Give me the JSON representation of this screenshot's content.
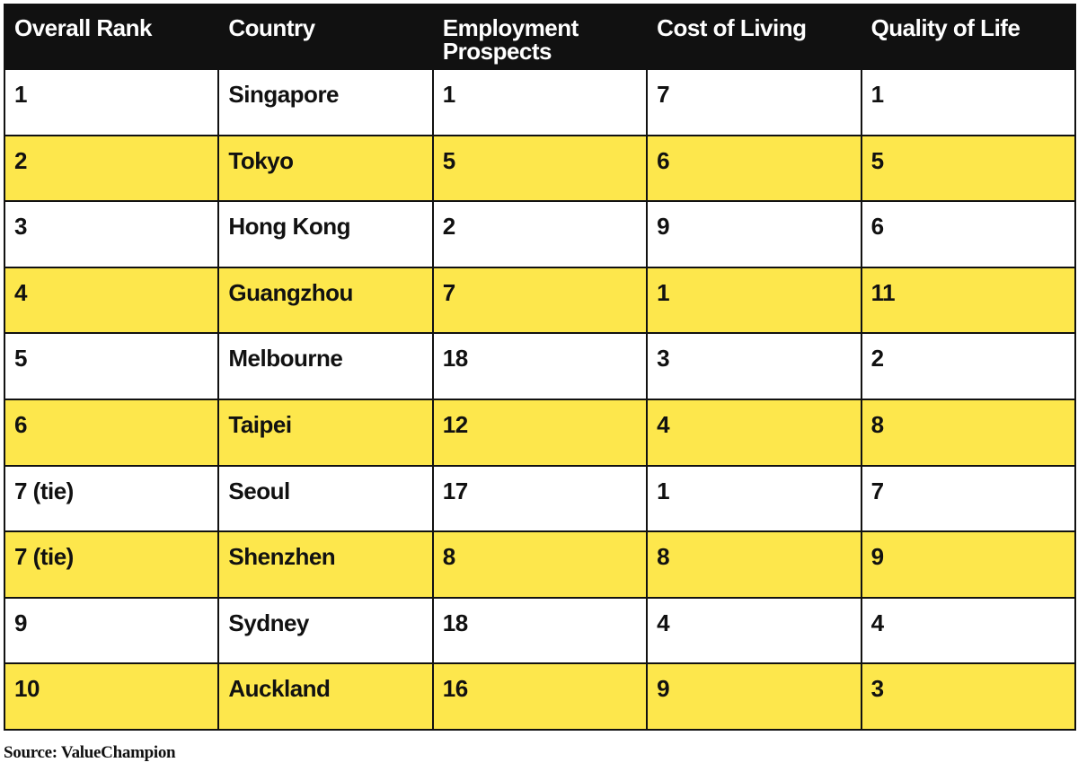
{
  "chart_data": {
    "type": "table",
    "columns": [
      "Overall Rank",
      "Country",
      "Employment Prospects",
      "Cost of Living",
      "Quality of Life"
    ],
    "rows": [
      [
        "1",
        "Singapore",
        "1",
        "7",
        "1"
      ],
      [
        "2",
        "Tokyo",
        "5",
        "6",
        "5"
      ],
      [
        "3",
        "Hong Kong",
        "2",
        "9",
        "6"
      ],
      [
        "4",
        "Guangzhou",
        "7",
        "1",
        "11"
      ],
      [
        "5",
        "Melbourne",
        "18",
        "3",
        "2"
      ],
      [
        "6",
        "Taipei",
        "12",
        "4",
        "8"
      ],
      [
        "7 (tie)",
        "Seoul",
        "17",
        "1",
        "7"
      ],
      [
        "7 (tie)",
        "Shenzhen",
        "8",
        "8",
        "9"
      ],
      [
        "9",
        "Sydney",
        "18",
        "4",
        "4"
      ],
      [
        "10",
        "Auckland",
        "16",
        "9",
        "3"
      ]
    ],
    "header_color": "#111111",
    "header_text_color": "#ffffff",
    "stripe_color": "#fde74c",
    "row_color": "#ffffff"
  },
  "source": "Source: ValueChampion"
}
